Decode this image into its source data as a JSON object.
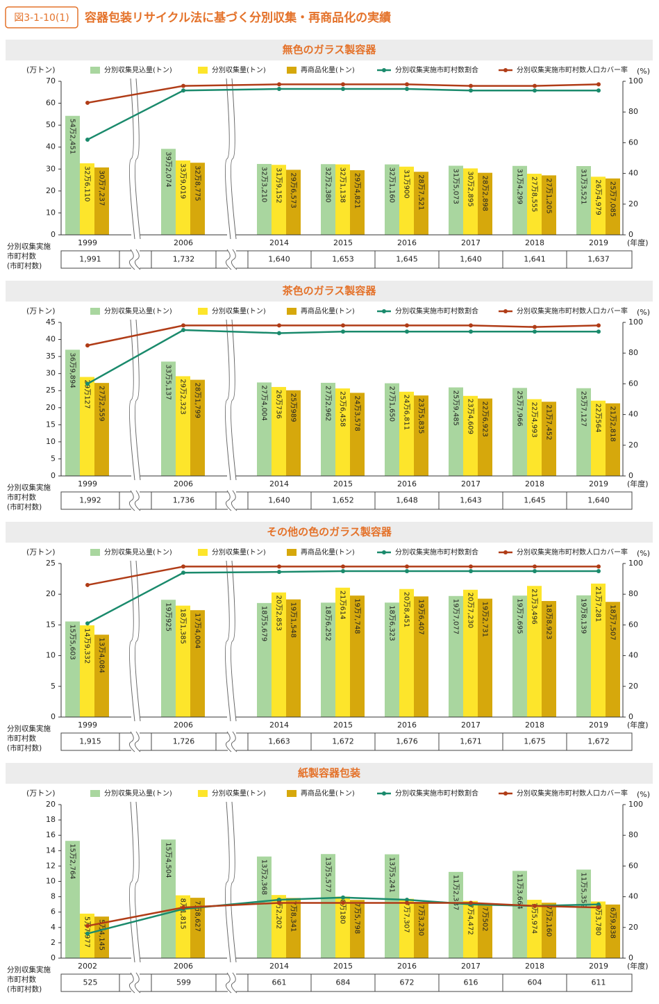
{
  "figure_label": "図3-1-10(1)",
  "title": "容器包装リサイクル法に基づく分別収集・再商品化の実績",
  "table_row_label": [
    "分別収集実施",
    "市町村数",
    "(市町村数)"
  ],
  "chart_data": [
    {
      "type": "bar",
      "title": "無色のガラス製容器",
      "y_label": "(万トン)",
      "y2_label": "(%)",
      "x_label": "(年度)",
      "legend": "top",
      "categories": [
        "1999",
        "2006",
        "2014",
        "2015",
        "2016",
        "2017",
        "2018",
        "2019"
      ],
      "ylim": [
        0,
        70
      ],
      "yticks": [
        0,
        10,
        20,
        30,
        40,
        50,
        60,
        70
      ],
      "y2lim": [
        0,
        100
      ],
      "y2ticks": [
        0,
        20,
        40,
        60,
        80,
        100
      ],
      "series": [
        {
          "name": "分別収集見込量(トン)",
          "color": "#a9d69f",
          "values": [
            54.2451,
            39.2074,
            32.321,
            32.238,
            32.116,
            31.5073,
            31.4299,
            31.3521
          ],
          "value_labels": [
            "54万2,451",
            "39万2,074",
            "32万3,210",
            "32万2,380",
            "32万1,160",
            "31万5,073",
            "31万4,299",
            "31万3,521"
          ]
        },
        {
          "name": "分別収集量(トン)",
          "color": "#fde52b",
          "values": [
            32.611,
            33.9019,
            31.9152,
            32.1138,
            31.09,
            30.2895,
            27.8555,
            26.4979
          ],
          "value_labels": [
            "32万6,110",
            "33万9,019",
            "31万9,152",
            "32万1,138",
            "31万900",
            "30万2,895",
            "27万8,555",
            "26万4,979"
          ]
        },
        {
          "name": "再商品化量(トン)",
          "color": "#d6a80c",
          "values": [
            30.7237,
            32.8775,
            29.6573,
            29.4821,
            28.7521,
            28.2898,
            27.1205,
            25.7085
          ],
          "value_labels": [
            "30万7,237",
            "32万8,775",
            "29万6,573",
            "29万4,821",
            "28万7,521",
            "28万2,898",
            "27万1,205",
            "25万7,085"
          ]
        },
        {
          "name": "分別収集実施市町村数割合",
          "color": "#1a8a6c",
          "axis": "y2",
          "values": [
            62,
            94,
            95,
            95,
            95,
            94,
            94,
            94
          ]
        },
        {
          "name": "分別収集実施市町村数人口カバー率",
          "color": "#b03c17",
          "axis": "y2",
          "values": [
            86,
            97,
            98,
            98,
            98,
            97,
            97,
            98
          ]
        }
      ],
      "municipalities": [
        "1,991",
        "1,732",
        "1,640",
        "1,653",
        "1,645",
        "1,640",
        "1,641",
        "1,637"
      ]
    },
    {
      "type": "bar",
      "title": "茶色のガラス製容器",
      "y_label": "(万トン)",
      "y2_label": "(%)",
      "x_label": "(年度)",
      "legend": "top",
      "categories": [
        "1999",
        "2006",
        "2014",
        "2015",
        "2016",
        "2017",
        "2018",
        "2019"
      ],
      "ylim": [
        0,
        45
      ],
      "yticks": [
        0,
        5,
        10,
        15,
        20,
        25,
        30,
        35,
        40,
        45
      ],
      "y2lim": [
        0,
        100
      ],
      "y2ticks": [
        0,
        20,
        40,
        60,
        80,
        100
      ],
      "series": [
        {
          "name": "分別収集見込量(トン)",
          "color": "#a9d69f",
          "values": [
            36.9894,
            33.5137,
            27.4004,
            27.2962,
            27.165,
            25.9485,
            25.7966,
            25.7127
          ],
          "value_labels": [
            "36万9,894",
            "33万5,137",
            "27万4,004",
            "27万2,962",
            "27万1,650",
            "25万9,485",
            "25万7,966",
            "25万7,127"
          ]
        },
        {
          "name": "分別収集量(トン)",
          "color": "#fde52b",
          "values": [
            29.0127,
            29.2323,
            26.0736,
            25.6458,
            24.6811,
            23.4609,
            22.4993,
            22.0564
          ],
          "value_labels": [
            "29万127",
            "29万2,323",
            "26万736",
            "25万6,458",
            "24万6,811",
            "23万4,609",
            "22万4,993",
            "22万564"
          ]
        },
        {
          "name": "再商品化量(トン)",
          "color": "#d6a80c",
          "values": [
            27.2559,
            28.1799,
            25.0989,
            24.3578,
            23.5835,
            22.6923,
            21.7452,
            21.2818
          ],
          "value_labels": [
            "27万2,559",
            "28万1,799",
            "25万989",
            "24万3,578",
            "23万5,835",
            "22万6,923",
            "21万7,452",
            "21万2,818"
          ]
        },
        {
          "name": "分別収集実施市町村数割合",
          "color": "#1a8a6c",
          "axis": "y2",
          "values": [
            60,
            95,
            93,
            94,
            94,
            94,
            94,
            94
          ]
        },
        {
          "name": "分別収集実施市町村数人口カバー率",
          "color": "#b03c17",
          "axis": "y2",
          "values": [
            85,
            98,
            98,
            98,
            98,
            98,
            97,
            98
          ]
        }
      ],
      "municipalities": [
        "1,992",
        "1,736",
        "1,640",
        "1,652",
        "1,648",
        "1,643",
        "1,645",
        "1,640"
      ]
    },
    {
      "type": "bar",
      "title": "その他の色のガラス製容器",
      "y_label": "(万トン)",
      "y2_label": "(%)",
      "x_label": "(年度)",
      "legend": "top",
      "categories": [
        "1999",
        "2006",
        "2014",
        "2015",
        "2016",
        "2017",
        "2018",
        "2019"
      ],
      "ylim": [
        0,
        25
      ],
      "yticks": [
        0,
        5,
        10,
        15,
        20,
        25
      ],
      "y2lim": [
        0,
        100
      ],
      "y2ticks": [
        0,
        20,
        40,
        60,
        80,
        100
      ],
      "series": [
        {
          "name": "分別収集見込量(トン)",
          "color": "#a9d69f",
          "values": [
            15.5603,
            19.0925,
            18.5679,
            18.6252,
            18.6323,
            19.7077,
            19.7695,
            19.8139
          ],
          "value_labels": [
            "15万5,603",
            "19万925",
            "18万5,679",
            "18万6,252",
            "18万6,323",
            "19万7,077",
            "19万7,695",
            "19万8,139"
          ]
        },
        {
          "name": "分別収集量(トン)",
          "color": "#fde52b",
          "values": [
            14.9332,
            18.1385,
            20.2853,
            21.0614,
            20.8451,
            20.723,
            21.3496,
            21.7281
          ],
          "value_labels": [
            "14万9,332",
            "18万1,385",
            "20万2,853",
            "21万614",
            "20万8,451",
            "20万7,230",
            "21万3,496",
            "21万7,281"
          ]
        },
        {
          "name": "再商品化量(トン)",
          "color": "#d6a80c",
          "values": [
            13.4084,
            17.4004,
            19.1548,
            19.7748,
            19.6407,
            19.2731,
            18.8923,
            18.7507
          ],
          "value_labels": [
            "13万4,084",
            "17万4,004",
            "19万1,548",
            "19万7,748",
            "19万6,407",
            "19万2,731",
            "18万8,923",
            "18万7,507"
          ]
        },
        {
          "name": "分別収集実施市町村数割合",
          "color": "#1a8a6c",
          "axis": "y2",
          "values": [
            61,
            94,
            94.5,
            95,
            95,
            95,
            95,
            95
          ]
        },
        {
          "name": "分別収集実施市町村数人口カバー率",
          "color": "#b03c17",
          "axis": "y2",
          "values": [
            86,
            98,
            98,
            98,
            98,
            98,
            98,
            98
          ]
        }
      ],
      "municipalities": [
        "1,915",
        "1,726",
        "1,663",
        "1,672",
        "1,676",
        "1,671",
        "1,675",
        "1,672"
      ]
    },
    {
      "type": "bar",
      "title": "紙製容器包装",
      "y_label": "(万トン)",
      "y2_label": "(%)",
      "x_label": "(年度)",
      "legend": "top",
      "categories": [
        "2002",
        "2006",
        "2014",
        "2015",
        "2016",
        "2017",
        "2018",
        "2019"
      ],
      "ylim": [
        0,
        20
      ],
      "yticks": [
        0,
        2,
        4,
        6,
        8,
        10,
        12,
        14,
        16,
        18,
        20
      ],
      "y2lim": [
        0,
        100
      ],
      "y2ticks": [
        0,
        20,
        40,
        60,
        80,
        100
      ],
      "series": [
        {
          "name": "分別収集見込量(トン)",
          "color": "#a9d69f",
          "values": [
            15.2764,
            15.4504,
            13.2368,
            13.5577,
            13.5241,
            11.2337,
            11.3664,
            11.5352
          ],
          "value_labels": [
            "15万2,764",
            "15万4,504",
            "13万2,368",
            "13万5,577",
            "13万5,241",
            "11万2,337",
            "11万3,664",
            "11万5,352"
          ]
        },
        {
          "name": "分別収集量(トン)",
          "color": "#fde52b",
          "values": [
            5.7977,
            8.1815,
            8.2202,
            8.018,
            7.7307,
            7.4472,
            7.5974,
            7.378
          ],
          "value_labels": [
            "5万7,977",
            "8万1,815",
            "8万2,202",
            "8万180",
            "7万7,307",
            "7万4,472",
            "7万5,974",
            "7万3,780"
          ]
        },
        {
          "name": "再商品化量(トン)",
          "color": "#d6a80c",
          "values": [
            5.4145,
            7.8627,
            7.8341,
            7.5798,
            7.323,
            7.0502,
            7.216,
            6.9838
          ],
          "value_labels": [
            "5万4,145",
            "7万8,627",
            "7万8,341",
            "7万5,798",
            "7万3,230",
            "7万502",
            "7万2,160",
            "6万9,838"
          ]
        },
        {
          "name": "分別収集実施市町村数割合",
          "color": "#1a8a6c",
          "axis": "y2",
          "values": [
            16,
            32,
            38,
            39.5,
            38,
            35,
            34,
            35
          ]
        },
        {
          "name": "分別収集実施市町村数人口カバー率",
          "color": "#b03c17",
          "axis": "y2",
          "values": [
            21,
            33,
            36,
            36,
            36,
            36,
            34,
            33
          ]
        }
      ],
      "municipalities": [
        "525",
        "599",
        "661",
        "684",
        "672",
        "616",
        "604",
        "611"
      ]
    }
  ]
}
